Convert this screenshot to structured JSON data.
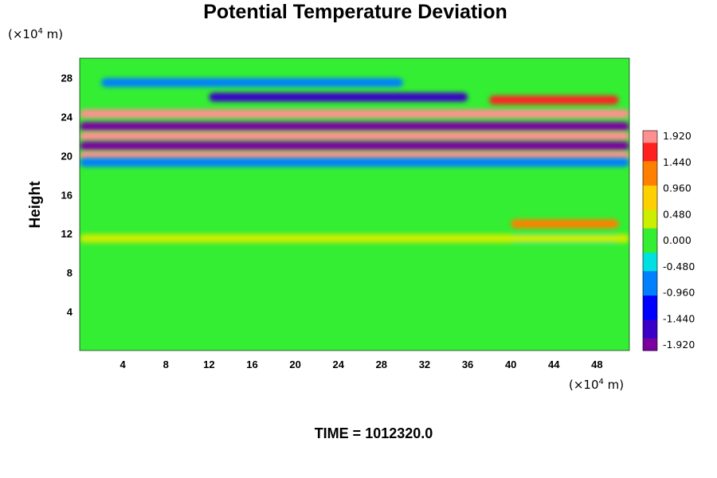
{
  "chart_data": {
    "type": "heatmap",
    "title": "Potential Temperature Deviation",
    "ylabel": "Height",
    "x_unit": "(×10",
    "x_unit_exp": "4",
    "x_unit_tail": " m)",
    "y_unit": "(×10",
    "y_unit_exp": "4",
    "y_unit_tail": " m)",
    "xlim": [
      0,
      51
    ],
    "ylim": [
      0,
      30
    ],
    "x_ticks": [
      4,
      8,
      12,
      16,
      20,
      24,
      28,
      32,
      36,
      40,
      44,
      48
    ],
    "y_ticks": [
      4,
      8,
      12,
      16,
      20,
      24,
      28
    ],
    "colorbar": {
      "min": -2.0,
      "max": 2.0,
      "ticks": [
        "1.920",
        "1.440",
        "0.960",
        "0.480",
        "0.000",
        "-0.480",
        "-0.960",
        "-1.440",
        "-1.920"
      ]
    },
    "footer": "TIME = 1012320.0",
    "features": [
      {
        "x": [
          0,
          51
        ],
        "y": 24.3,
        "value": 1.9
      },
      {
        "x": [
          0,
          51
        ],
        "y": 23.0,
        "value": -1.9
      },
      {
        "x": [
          0,
          51
        ],
        "y": 22.0,
        "value": 1.9
      },
      {
        "x": [
          0,
          51
        ],
        "y": 21.0,
        "value": -1.9
      },
      {
        "x": [
          0,
          51
        ],
        "y": 20.0,
        "value": 1.9
      },
      {
        "x": [
          0,
          51
        ],
        "y": 19.3,
        "value": -1.0
      },
      {
        "x": [
          12,
          36
        ],
        "y": 26.0,
        "value": -1.5
      },
      {
        "x": [
          38,
          50
        ],
        "y": 25.7,
        "value": 1.6
      },
      {
        "x": [
          2,
          30
        ],
        "y": 27.5,
        "value": -0.7
      },
      {
        "x": [
          40,
          50
        ],
        "y": 13.0,
        "value": 1.2
      },
      {
        "x": [
          40,
          50
        ],
        "y": 11.5,
        "value": -0.6
      },
      {
        "x": [
          0,
          51
        ],
        "y": 11.5,
        "value": 0.4
      }
    ],
    "colors": {
      "background": "#33ee33",
      "scale": [
        "#7a00a0",
        "#3a00c8",
        "#0000ff",
        "#0080ff",
        "#00e0e0",
        "#33ee33",
        "#ccee00",
        "#ffd000",
        "#ff8000",
        "#ff2020",
        "#ff9090"
      ]
    }
  }
}
